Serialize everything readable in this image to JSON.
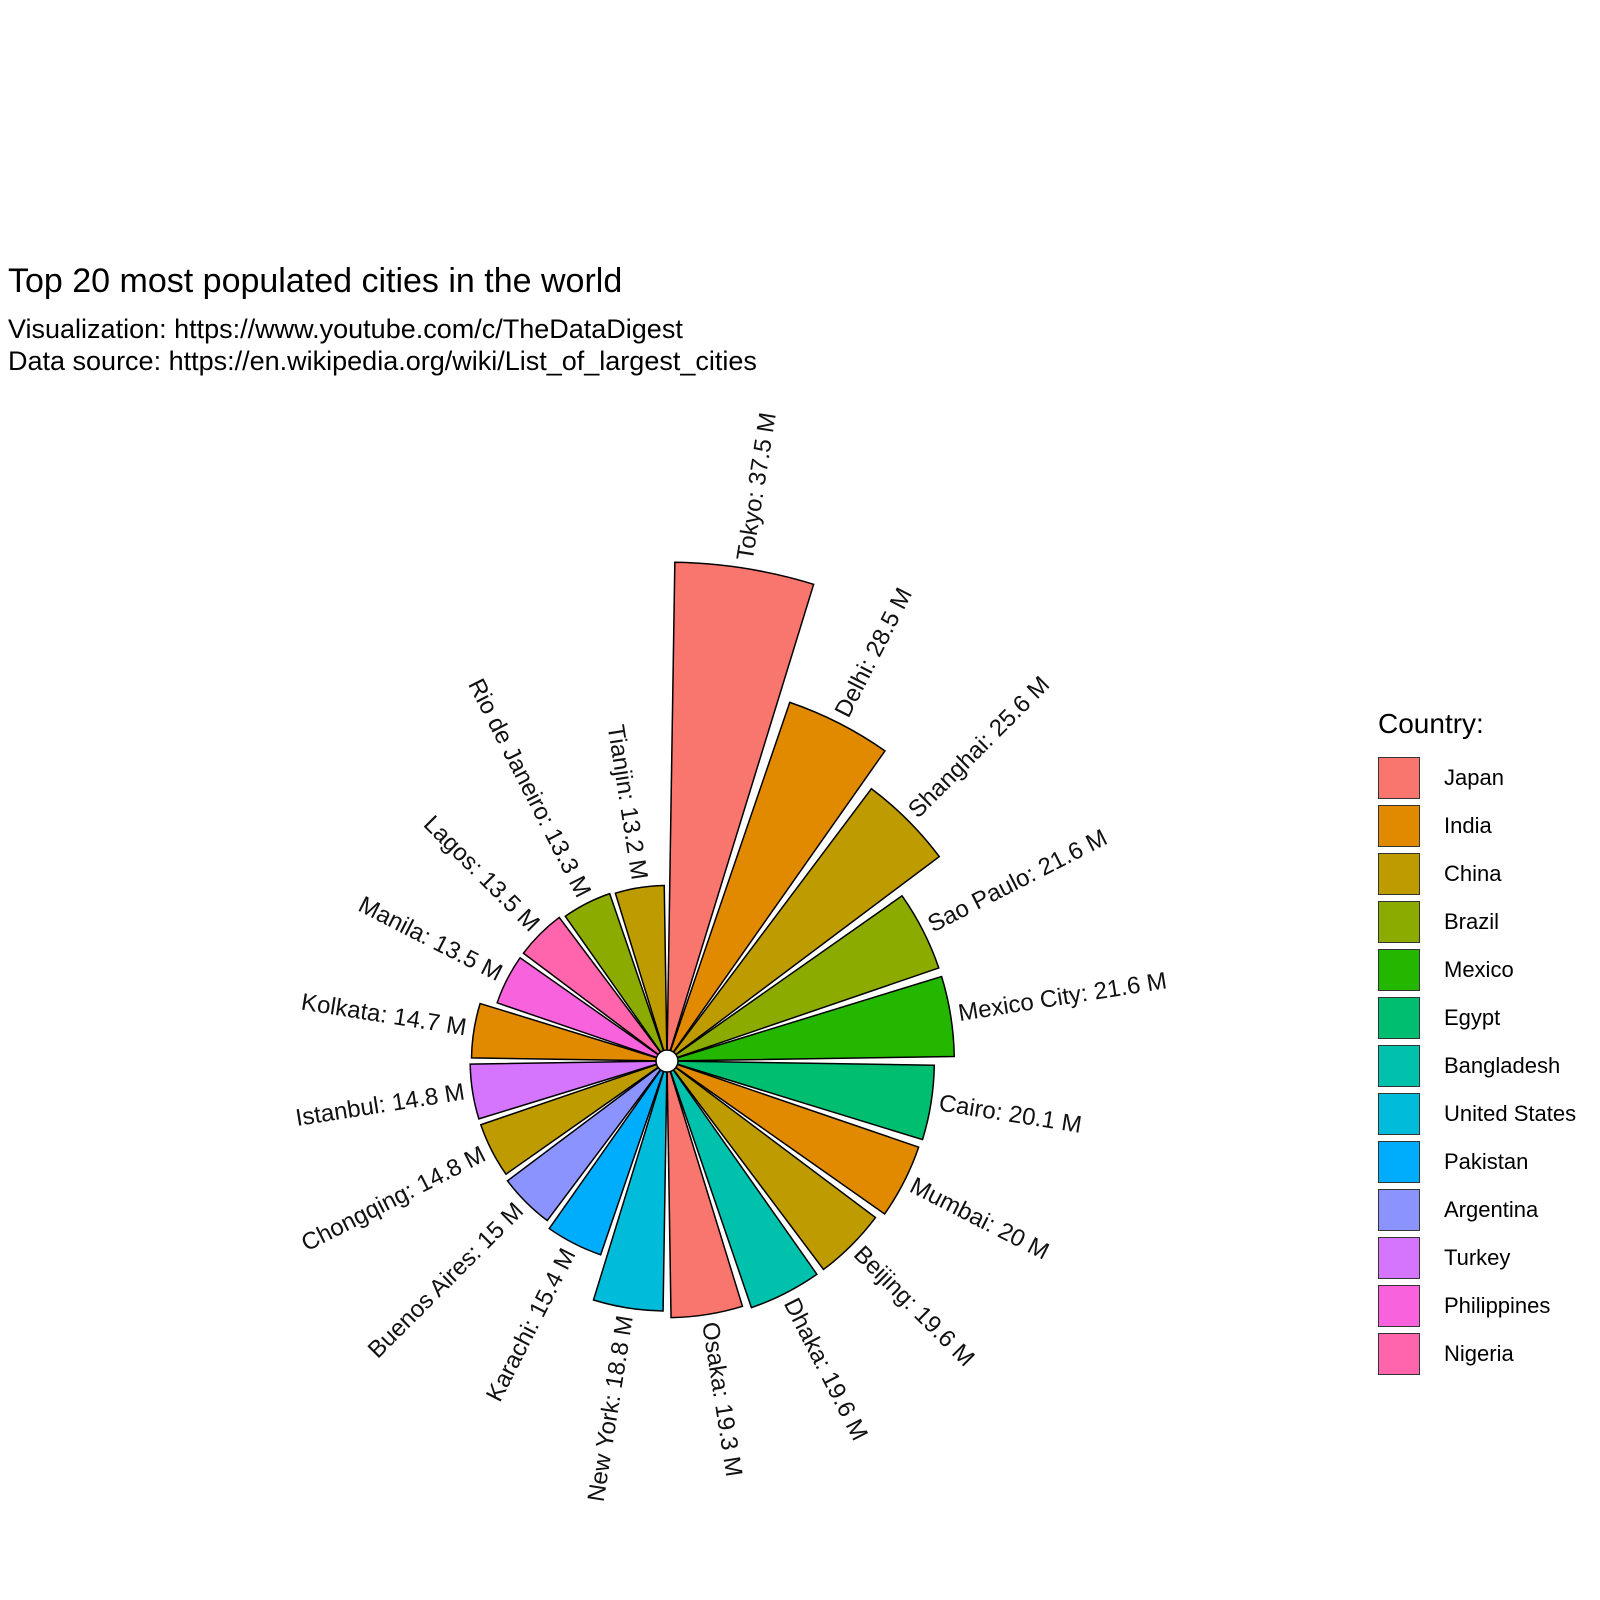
{
  "chart_data": {
    "type": "bar",
    "coord": "polar",
    "title": "Top 20 most populated cities in the world",
    "subtitle_lines": [
      "Visualization: https://www.youtube.com/c/TheDataDigest",
      "Data source: https://en.wikipedia.org/wiki/List_of_largest_cities"
    ],
    "label_unit": "M",
    "categories": [
      "Tokyo",
      "Delhi",
      "Shanghai",
      "Sao Paulo",
      "Mexico City",
      "Cairo",
      "Mumbai",
      "Beijing",
      "Dhaka",
      "Osaka",
      "New York",
      "Karachi",
      "Buenos Aires",
      "Chongqing",
      "Istanbul",
      "Kolkata",
      "Manila",
      "Lagos",
      "Rio de Janeiro",
      "Tianjin"
    ],
    "values": [
      37.5,
      28.5,
      25.6,
      21.6,
      21.6,
      20.1,
      20,
      19.6,
      19.6,
      19.3,
      18.8,
      15.4,
      15,
      14.8,
      14.8,
      14.7,
      13.5,
      13.5,
      13.3,
      13.2
    ],
    "countries": [
      "Japan",
      "India",
      "China",
      "Brazil",
      "Mexico",
      "Egypt",
      "India",
      "China",
      "Bangladesh",
      "Japan",
      "United States",
      "Pakistan",
      "Argentina",
      "China",
      "Turkey",
      "India",
      "Philippines",
      "Nigeria",
      "Brazil",
      "China"
    ],
    "legend": {
      "title": "Country:",
      "position": "right",
      "entries": [
        {
          "name": "Japan",
          "color": "#F8766D"
        },
        {
          "name": "India",
          "color": "#E18A00"
        },
        {
          "name": "China",
          "color": "#BE9C00"
        },
        {
          "name": "Brazil",
          "color": "#8CAB00"
        },
        {
          "name": "Mexico",
          "color": "#24B700"
        },
        {
          "name": "Egypt",
          "color": "#00BE70"
        },
        {
          "name": "Bangladesh",
          "color": "#00C1AB"
        },
        {
          "name": "United States",
          "color": "#00BBDA"
        },
        {
          "name": "Pakistan",
          "color": "#00ACFC"
        },
        {
          "name": "Argentina",
          "color": "#8B93FF"
        },
        {
          "name": "Turkey",
          "color": "#D575FE"
        },
        {
          "name": "Philippines",
          "color": "#F962DD"
        },
        {
          "name": "Nigeria",
          "color": "#FF65AC"
        }
      ]
    },
    "grid": false
  }
}
